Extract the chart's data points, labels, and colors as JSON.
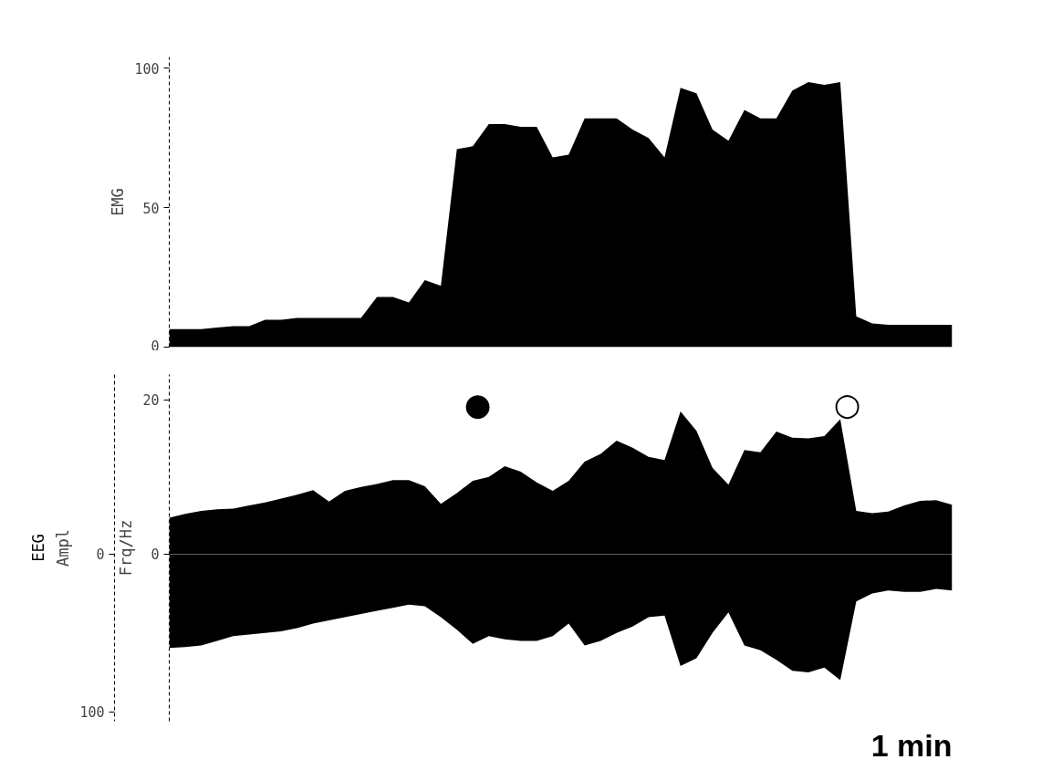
{
  "chart_data": [
    {
      "type": "area",
      "ylabel": "EMG",
      "ylim": [
        0,
        104
      ],
      "yticks": [
        0,
        50,
        100
      ],
      "tick_labels": "y",
      "grid": false,
      "categories": [
        null,
        null,
        null,
        null,
        null,
        null,
        null,
        null,
        null,
        null,
        null,
        null,
        null,
        null,
        null,
        null,
        null,
        null,
        null,
        null,
        null,
        null,
        null,
        null,
        null,
        null,
        null,
        null,
        null,
        null,
        null,
        null,
        null,
        null,
        null,
        null,
        null,
        null,
        null,
        null,
        null,
        null,
        null,
        null,
        null,
        null,
        null,
        null,
        null,
        null
      ],
      "series": [
        {
          "color": "#000000",
          "values": [
            6.5,
            6.5,
            6.5,
            7,
            7.5,
            7.5,
            9.8,
            9.8,
            10.5,
            10.5,
            10.5,
            10.5,
            10.5,
            18,
            18,
            16,
            24,
            22,
            71,
            72,
            80,
            80,
            79,
            79,
            68,
            69,
            82,
            82,
            82,
            78,
            75,
            68,
            93,
            91,
            78,
            74,
            85,
            82,
            82,
            92,
            95,
            94,
            95,
            11,
            8.5,
            8,
            8,
            8,
            8,
            8
          ]
        }
      ]
    },
    {
      "type": "area",
      "ylabel": "Frq/Hz",
      "y2label": "Ampl",
      "ylim": [
        -21.7,
        23.3
      ],
      "yticks": [
        0,
        20
      ],
      "y2lim": [
        106,
        -114
      ],
      "y2ticks": [
        0,
        100
      ],
      "tick_labels": "y",
      "grid": false,
      "annotations": [
        "●",
        "○",
        "EEG",
        "1 min"
      ],
      "categories": [
        null,
        null,
        null,
        null,
        null,
        null,
        null,
        null,
        null,
        null,
        null,
        null,
        null,
        null,
        null,
        null,
        null,
        null,
        null,
        null,
        null,
        null,
        null,
        null,
        null,
        null,
        null,
        null,
        null,
        null,
        null,
        null,
        null,
        null,
        null,
        null,
        null,
        null,
        null,
        null,
        null,
        null,
        null,
        null,
        null,
        null,
        null,
        null,
        null,
        null
      ],
      "series": [
        {
          "color": "#000000",
          "values": [
            4.7,
            5.2,
            5.6,
            5.8,
            5.9,
            6.3,
            6.7,
            7.2,
            7.7,
            8.3,
            6.8,
            8.2,
            8.7,
            9.1,
            9.6,
            9.6,
            8.8,
            6.5,
            7.9,
            9.5,
            10,
            11.4,
            10.7,
            9.3,
            8.2,
            9.5,
            12,
            13,
            14.7,
            13.8,
            12.6,
            12.2,
            18.5,
            16,
            11.2,
            9,
            13.5,
            13.2,
            15.9,
            15.1,
            15,
            15.3,
            17.5,
            5.6,
            5.3,
            5.5,
            6.3,
            6.9,
            7,
            6.4
          ]
        },
        {
          "color": "#000000",
          "axis": "y2",
          "values": [
            59.5,
            59,
            58,
            55,
            52,
            51,
            50,
            49,
            47,
            44,
            42,
            40,
            38,
            36,
            34,
            32,
            33,
            40,
            48,
            57,
            52,
            54,
            55,
            55,
            52,
            44,
            58,
            55,
            50,
            46,
            40,
            39,
            71,
            66,
            50,
            37,
            58,
            61,
            67,
            74,
            75,
            72,
            80,
            30,
            25,
            23,
            24,
            24,
            22,
            23
          ]
        }
      ]
    }
  ]
}
